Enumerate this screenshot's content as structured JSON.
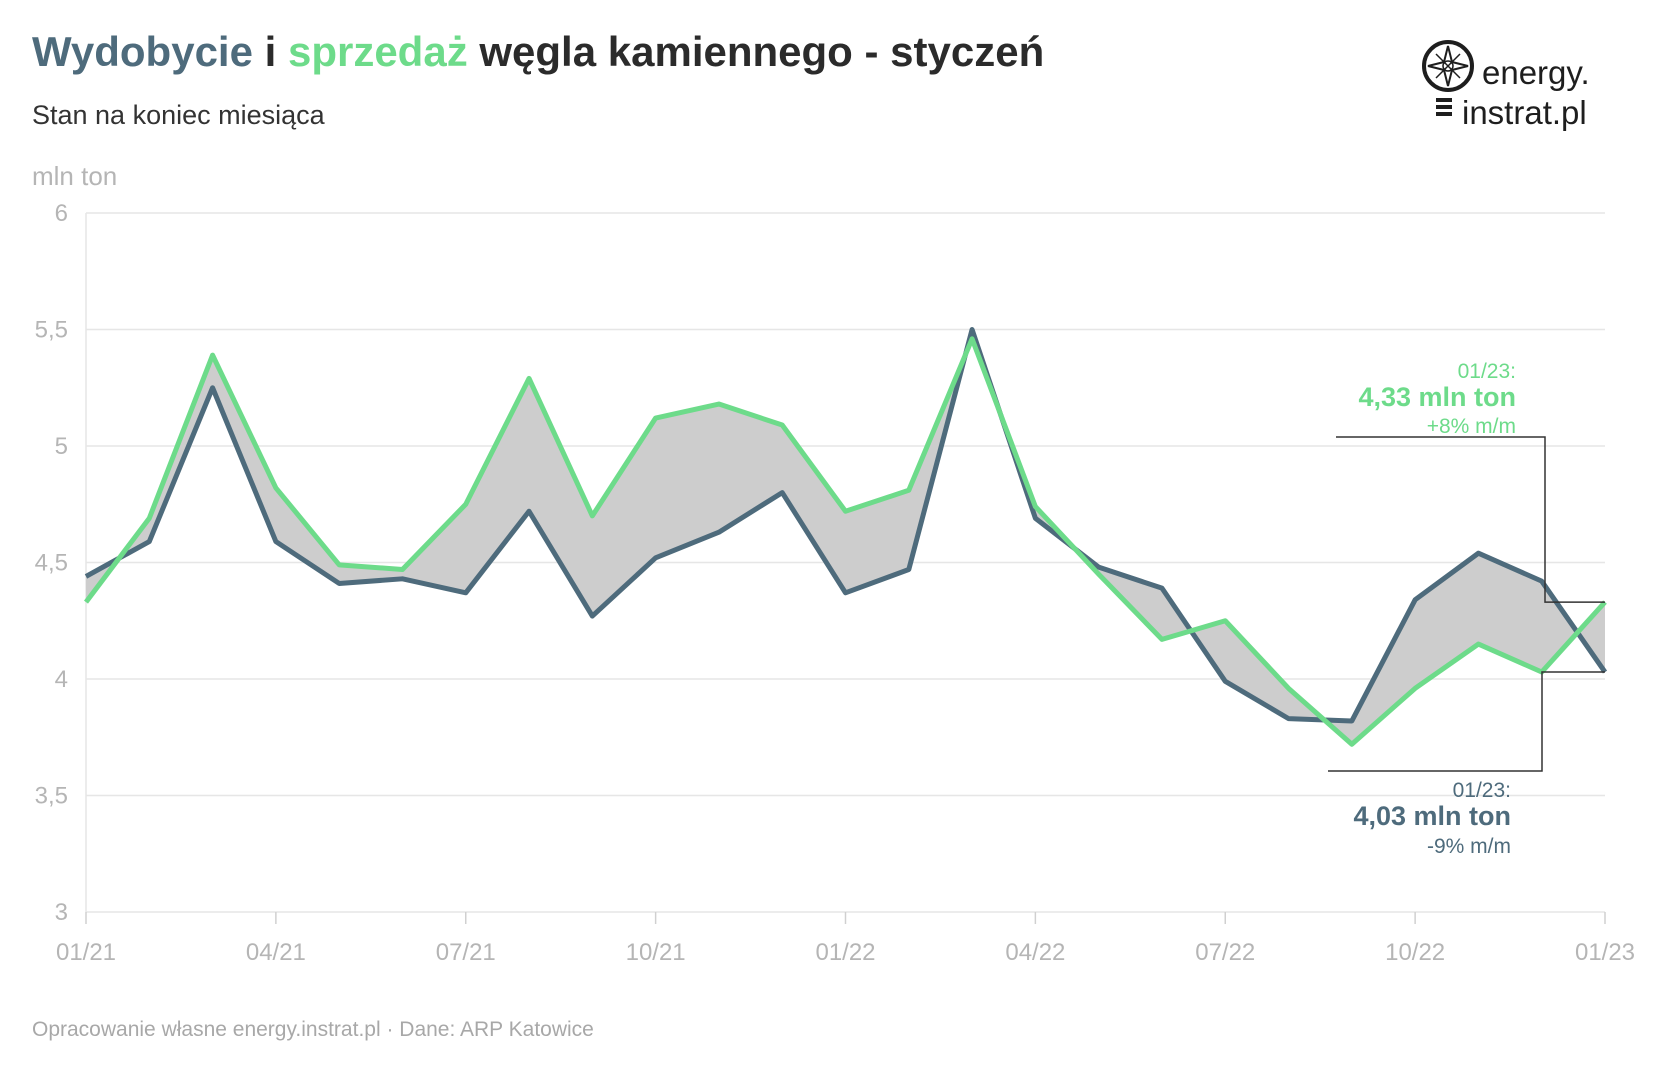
{
  "header": {
    "title_part1": "Wydobycie",
    "title_part2": " i ",
    "title_part3": "sprzedaż",
    "title_part4": " węgla kamiennego - styczeń",
    "subtitle": "Stan na koniec miesiąca"
  },
  "logo": {
    "line1": "energy.",
    "line2": "instrat.pl"
  },
  "footer": "Opracowanie własne energy.instrat.pl · Dane: ARP Katowice",
  "colors": {
    "production": "#4e6b7c",
    "sales": "#6ddb8a",
    "fill": "#cdcdcd",
    "grid": "#e6e6e6"
  },
  "chart_data": {
    "type": "line",
    "ylabel": "mln ton",
    "ylim": [
      3,
      6
    ],
    "yticks": [
      3,
      3.5,
      4,
      4.5,
      5,
      5.5,
      6
    ],
    "ytick_labels": [
      "3",
      "3,5",
      "4",
      "4,5",
      "5",
      "5,5",
      "6"
    ],
    "grid": true,
    "categories": [
      "01/21",
      "02/21",
      "03/21",
      "04/21",
      "05/21",
      "06/21",
      "07/21",
      "08/21",
      "09/21",
      "10/21",
      "11/21",
      "12/21",
      "01/22",
      "02/22",
      "03/22",
      "04/22",
      "05/22",
      "06/22",
      "07/22",
      "08/22",
      "09/22",
      "10/22",
      "11/22",
      "12/22",
      "01/23"
    ],
    "xtick_labels": [
      "01/21",
      "04/21",
      "07/21",
      "10/21",
      "01/22",
      "04/22",
      "07/22",
      "10/22",
      "01/23"
    ],
    "series": [
      {
        "key": "production",
        "values": [
          4.44,
          4.59,
          5.25,
          4.59,
          4.41,
          4.43,
          4.37,
          4.72,
          4.27,
          4.52,
          4.63,
          4.8,
          4.37,
          4.47,
          5.5,
          4.69,
          4.48,
          4.39,
          3.99,
          3.83,
          3.82,
          4.34,
          4.54,
          4.42,
          4.03
        ]
      },
      {
        "key": "sales",
        "values": [
          4.33,
          4.69,
          5.39,
          4.82,
          4.49,
          4.47,
          4.75,
          5.29,
          4.7,
          5.12,
          5.18,
          5.09,
          4.72,
          4.81,
          5.46,
          4.74,
          4.45,
          4.17,
          4.25,
          3.96,
          3.72,
          3.96,
          4.15,
          4.03,
          4.33
        ]
      }
    ],
    "annotations": {
      "sales": {
        "date": "01/23:",
        "value": "4,33 mln ton",
        "change": "+8% m/m"
      },
      "production": {
        "date": "01/23:",
        "value": "4,03 mln ton",
        "change": "-9% m/m"
      }
    }
  }
}
